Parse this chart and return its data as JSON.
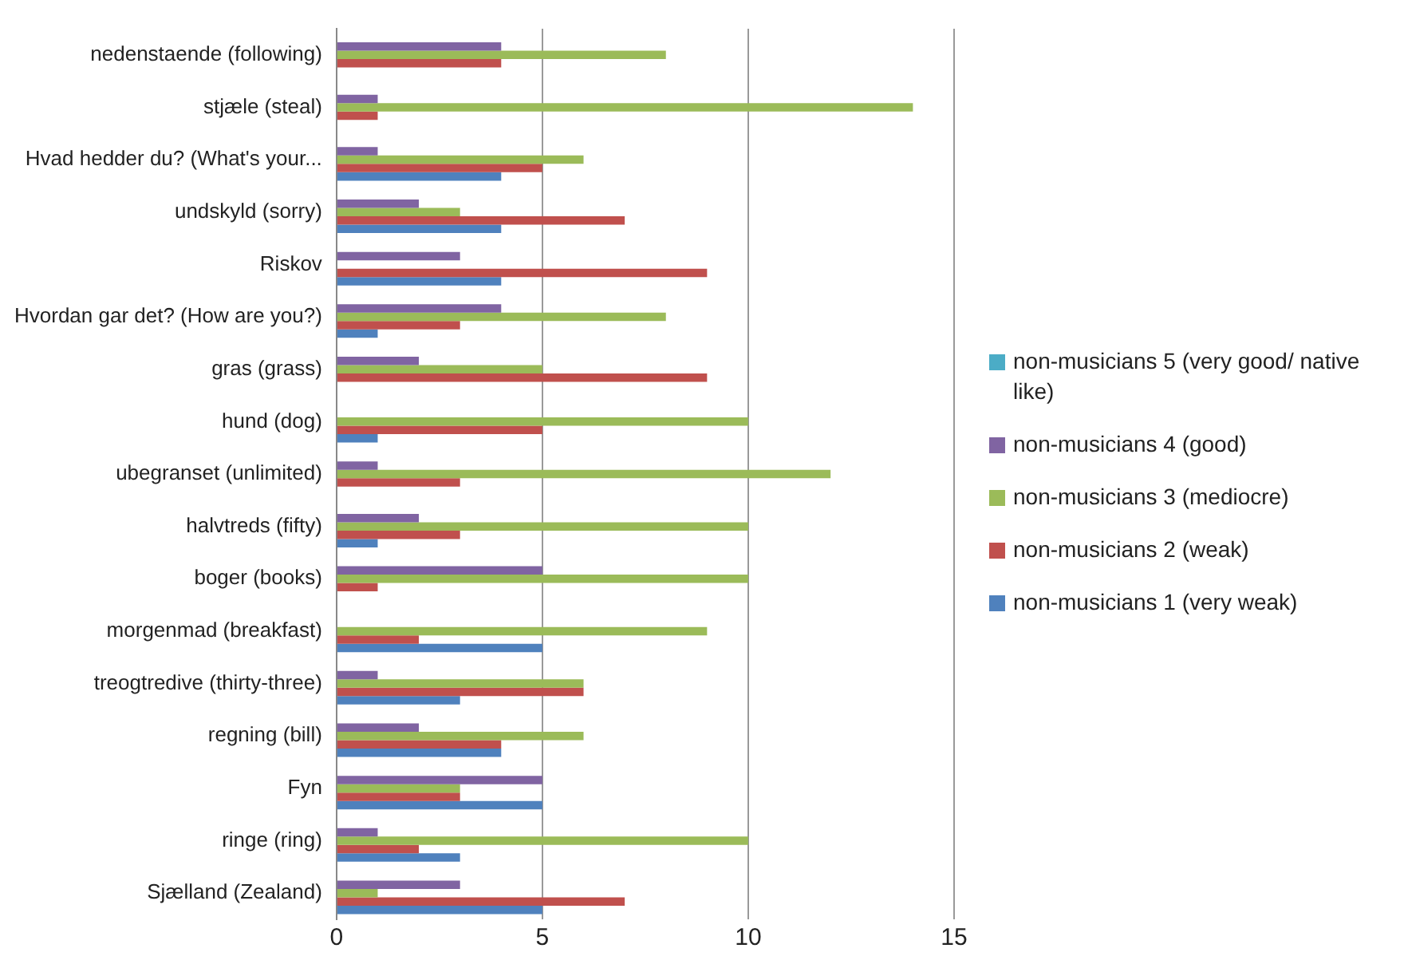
{
  "chart_data": {
    "type": "bar",
    "orientation": "horizontal",
    "categories": [
      "nedenstaende (following)",
      "stjæle (steal)",
      "Hvad hedder du? (What's your...",
      "undskyld (sorry)",
      "Riskov",
      "Hvordan gar det? (How are you?)",
      "gras (grass)",
      "hund (dog)",
      "ubegranset (unlimited)",
      "halvtreds (fifty)",
      "boger (books)",
      "morgenmad (breakfast)",
      "treogtredive (thirty-three)",
      "regning (bill)",
      "Fyn",
      "ringe (ring)",
      "Sjælland (Zealand)"
    ],
    "series": [
      {
        "name": "non-musicians 5 (very good/ native like)",
        "color": "#4bacc6",
        "values": [
          0,
          0,
          0,
          0,
          0,
          0,
          0,
          0,
          0,
          0,
          0,
          0,
          0,
          0,
          0,
          0,
          0
        ]
      },
      {
        "name": "non-musicians 4 (good)",
        "color": "#8064a2",
        "values": [
          4,
          1,
          1,
          2,
          3,
          4,
          2,
          0,
          1,
          2,
          5,
          0,
          1,
          2,
          5,
          1,
          3
        ]
      },
      {
        "name": "non-musicians 3 (mediocre)",
        "color": "#9bbb59",
        "values": [
          8,
          14,
          6,
          3,
          0,
          8,
          5,
          10,
          12,
          10,
          10,
          9,
          6,
          6,
          3,
          10,
          1
        ]
      },
      {
        "name": "non-musicians 2 (weak)",
        "color": "#c0504d",
        "values": [
          4,
          1,
          5,
          7,
          9,
          3,
          9,
          5,
          3,
          3,
          1,
          2,
          6,
          4,
          3,
          2,
          7
        ]
      },
      {
        "name": "non-musicians 1 (very weak)",
        "color": "#4f81bd",
        "values": [
          0,
          0,
          4,
          4,
          4,
          1,
          0,
          1,
          0,
          1,
          0,
          5,
          3,
          4,
          5,
          3,
          5
        ]
      }
    ],
    "xlim": [
      0,
      15
    ],
    "xticks": [
      0,
      5,
      10,
      15
    ],
    "grid": "x",
    "legend": "right"
  }
}
